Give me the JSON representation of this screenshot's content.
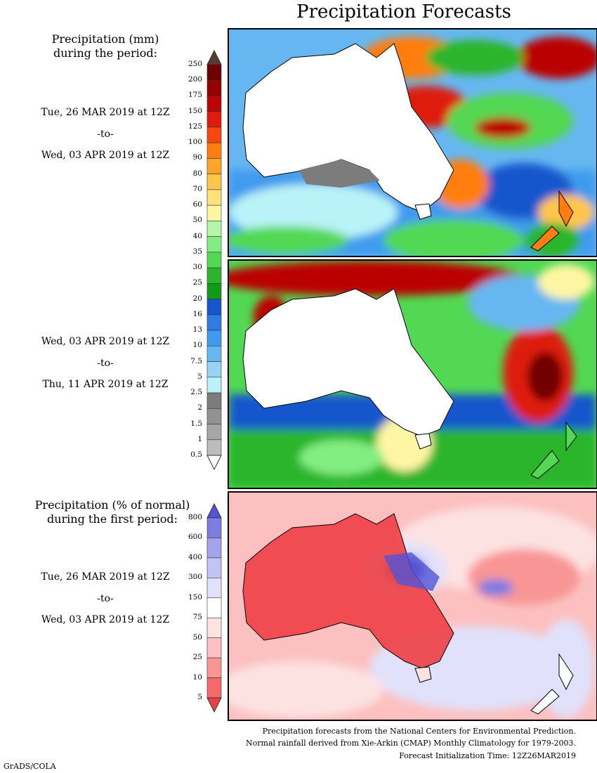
{
  "title": "Precipitation Forecasts",
  "legend_mm": {
    "title_line1": "Precipitation (mm)",
    "title_line2": "during the period:",
    "levels": [
      "0.5",
      "1",
      "1.5",
      "2",
      "2.5",
      "5",
      "7.5",
      "10",
      "13",
      "16",
      "20",
      "25",
      "30",
      "35",
      "40",
      "50",
      "60",
      "70",
      "80",
      "90",
      "100",
      "125",
      "150",
      "175",
      "200",
      "250"
    ],
    "colors": [
      "#ffffff",
      "#bcbcbc",
      "#a6a6a6",
      "#929292",
      "#7c7c7c",
      "#b9f3f8",
      "#95d3f7",
      "#66b7f1",
      "#3f9bee",
      "#2d7be3",
      "#1556cd",
      "#0f9a17",
      "#2bb52b",
      "#52d852",
      "#82ee82",
      "#b4f7aa",
      "#fff6a4",
      "#ffe277",
      "#ffc649",
      "#ffa52c",
      "#ff7e0f",
      "#f84611",
      "#de1b0f",
      "#bb0505",
      "#970000",
      "#6f0000",
      "#5a3a32"
    ]
  },
  "legend_pct": {
    "title_line1": "Precipitation (% of normal)",
    "title_line2": "during the first period:",
    "levels": [
      "5",
      "10",
      "25",
      "50",
      "75",
      "150",
      "300",
      "400",
      "600",
      "800"
    ],
    "colors": [
      "#ee3f45",
      "#f56a6a",
      "#f99595",
      "#fcc0c0",
      "#fde2e2",
      "#ffffff",
      "#e1e1fb",
      "#c4c4f4",
      "#a3a3ec",
      "#7d7de1",
      "#5454d4"
    ]
  },
  "periods": {
    "p1": {
      "start": "Tue, 26 MAR 2019 at 12Z",
      "sep": "-to-",
      "end": "Wed, 03 APR 2019 at 12Z"
    },
    "p2": {
      "start": "Wed, 03 APR 2019 at 12Z",
      "sep": "-to-",
      "end": "Thu, 11 APR 2019 at 12Z"
    },
    "p3": {
      "start": "Tue, 26 MAR 2019 at 12Z",
      "sep": "-to-",
      "end": "Wed, 03 APR 2019 at 12Z"
    }
  },
  "footer": {
    "line1": "Precipitation forecasts from the National Centers for Environmental Prediction.",
    "line2": "Normal rainfall derived from Xie-Arkin (CMAP) Monthly Climatology for 1979-2003.",
    "line3": "Forecast Initialization Time: 12Z26MAR2019"
  },
  "credit": "GrADS/COLA"
}
